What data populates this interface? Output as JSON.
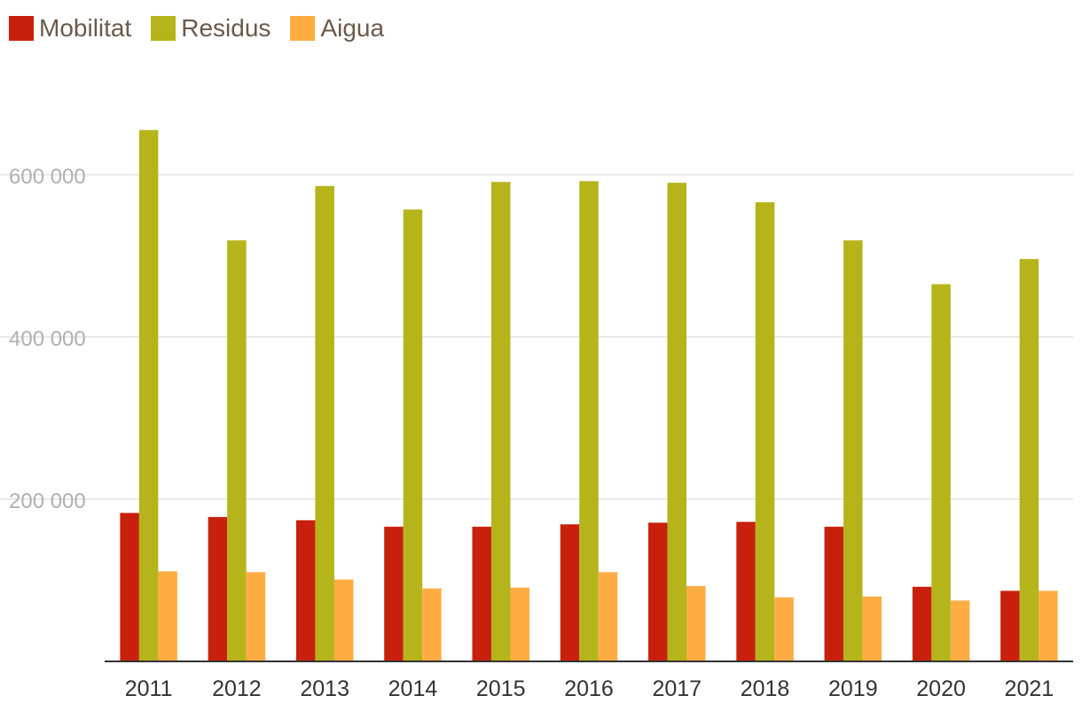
{
  "chart_data": {
    "type": "bar",
    "categories": [
      "2011",
      "2012",
      "2013",
      "2014",
      "2015",
      "2016",
      "2017",
      "2018",
      "2019",
      "2020",
      "2021"
    ],
    "series": [
      {
        "name": "Mobilitat",
        "color": "#c8200c",
        "values": [
          183000,
          178000,
          174000,
          166000,
          166000,
          169000,
          171000,
          172000,
          166000,
          92000,
          87000
        ]
      },
      {
        "name": "Residus",
        "color": "#b5b41a",
        "values": [
          655000,
          519000,
          586000,
          557000,
          591000,
          592000,
          590000,
          566000,
          519000,
          465000,
          496000
        ]
      },
      {
        "name": "Aigua",
        "color": "#ffad42",
        "values": [
          111000,
          110000,
          101000,
          90000,
          91000,
          110000,
          93000,
          79000,
          80000,
          75000,
          87000
        ]
      }
    ],
    "title": "",
    "xlabel": "",
    "ylabel": "",
    "ylim": [
      0,
      600000
    ],
    "yticks": [
      200000,
      400000,
      600000
    ],
    "ytick_labels": [
      "200 000",
      "400 000",
      "600 000"
    ],
    "grid": true,
    "legend_position": "top-left"
  }
}
